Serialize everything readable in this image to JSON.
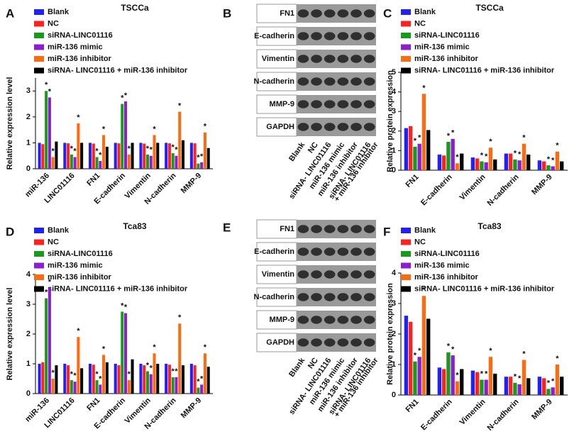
{
  "chart_data": [
    {
      "type": "bar",
      "panel": "A",
      "title": "TSCCa",
      "y_label": "Relative expression level",
      "categories": [
        "miR-136",
        "LINC01116",
        "FN1",
        "E-cadherin",
        "Vimentin",
        "N-cadherin",
        "MMP-9"
      ],
      "ylim": [
        0,
        3.5
      ],
      "yticks": [
        0,
        1,
        2,
        3
      ],
      "series": [
        {
          "name": "Blank",
          "color": "#2020ff",
          "values": [
            1,
            1,
            1,
            1,
            1,
            1,
            1
          ],
          "markers": [
            null,
            null,
            null,
            null,
            null,
            null,
            null
          ]
        },
        {
          "name": "NC",
          "color": "#ff2020",
          "values": [
            0.95,
            0.98,
            0.97,
            0.98,
            0.97,
            0.98,
            0.98
          ],
          "markers": [
            null,
            null,
            null,
            null,
            null,
            null,
            null
          ]
        },
        {
          "name": "siRNA-LINC01116",
          "color": "#1a9a1a",
          "values": [
            3.0,
            0.55,
            0.45,
            2.5,
            0.55,
            0.6,
            0.2
          ],
          "markers": [
            "*",
            "*",
            "*",
            "*",
            "*",
            "*",
            "*"
          ]
        },
        {
          "name": "miR-136 mimic",
          "color": "#8b1fd0",
          "values": [
            2.75,
            0.45,
            0.3,
            2.6,
            0.5,
            0.5,
            0.25
          ],
          "markers": [
            "*",
            "*",
            "*",
            "*",
            "*",
            "*",
            "*"
          ]
        },
        {
          "name": "miR-136 inhibitor",
          "color": "#ff6a10",
          "values": [
            0.45,
            1.75,
            1.3,
            0.55,
            1.3,
            2.2,
            1.4
          ],
          "markers": [
            "*",
            "*",
            "*",
            "*",
            "*",
            "*",
            "*"
          ]
        },
        {
          "name": "siRNA- LINC01116 + miR-136 inhibitor",
          "color": "#000000",
          "values": [
            1.05,
            1.0,
            0.85,
            1.0,
            1.0,
            1.1,
            0.8
          ],
          "markers": [
            null,
            null,
            null,
            null,
            null,
            null,
            null
          ]
        }
      ]
    },
    {
      "type": "bar",
      "panel": "C",
      "title": "TSCCa",
      "y_label": "Relative protein expression",
      "categories": [
        "FN1",
        "E-cadherin",
        "Vimentin",
        "N-cadherin",
        "MMP-9"
      ],
      "ylim": [
        0,
        5
      ],
      "yticks": [
        0,
        1,
        2,
        3,
        4,
        5
      ],
      "series": [
        {
          "name": "Blank",
          "color": "#2020ff",
          "values": [
            2.15,
            0.8,
            0.65,
            0.85,
            0.5
          ],
          "markers": [
            null,
            null,
            null,
            null,
            null
          ]
        },
        {
          "name": "NC",
          "color": "#ff2020",
          "values": [
            2.25,
            0.75,
            0.6,
            0.85,
            0.45
          ],
          "markers": [
            null,
            null,
            null,
            null,
            null
          ]
        },
        {
          "name": "siRNA-LINC01116",
          "color": "#1a9a1a",
          "values": [
            1.2,
            1.45,
            0.45,
            0.55,
            0.25
          ],
          "markers": [
            "*",
            "*",
            "*",
            "*",
            "*"
          ]
        },
        {
          "name": "miR-136 mimic",
          "color": "#8b1fd0",
          "values": [
            1.35,
            1.6,
            0.4,
            0.5,
            0.2
          ],
          "markers": [
            "*",
            "*",
            "*",
            "*",
            "*"
          ]
        },
        {
          "name": "miR-136 inhibitor",
          "color": "#ff6a10",
          "values": [
            3.9,
            0.35,
            1.15,
            1.35,
            0.95
          ],
          "markers": [
            "*",
            "*",
            "*",
            "*",
            "*"
          ]
        },
        {
          "name": "siRNA- LINC01116 + miR-136 inhibitor",
          "color": "#000000",
          "values": [
            2.05,
            0.85,
            0.55,
            0.8,
            0.45
          ],
          "markers": [
            null,
            null,
            null,
            null,
            null
          ]
        }
      ]
    },
    {
      "type": "bar",
      "panel": "D",
      "title": "Tca83",
      "y_label": "Relative expression level",
      "categories": [
        "miR-136",
        "LINC01116",
        "FN1",
        "E-cadherin",
        "Vimentin",
        "N-cadherin",
        "MMP-9"
      ],
      "ylim": [
        0,
        4
      ],
      "yticks": [
        0,
        1,
        2,
        3,
        4
      ],
      "series": [
        {
          "name": "Blank",
          "color": "#2020ff",
          "values": [
            1,
            1,
            1,
            1,
            1,
            1,
            1
          ],
          "markers": [
            null,
            null,
            null,
            null,
            null,
            null,
            null
          ]
        },
        {
          "name": "NC",
          "color": "#ff2020",
          "values": [
            1.05,
            0.95,
            0.97,
            0.95,
            0.95,
            0.97,
            0.95
          ],
          "markers": [
            null,
            null,
            null,
            null,
            null,
            null,
            null
          ]
        },
        {
          "name": "siRNA-LINC01116",
          "color": "#1a9a1a",
          "values": [
            3.2,
            0.45,
            0.45,
            2.75,
            0.75,
            0.55,
            0.2
          ],
          "markers": [
            "*",
            "*",
            "*",
            "*",
            "*",
            "*",
            "*"
          ]
        },
        {
          "name": "miR-136 mimic",
          "color": "#8b1fd0",
          "values": [
            3.55,
            0.4,
            0.3,
            2.7,
            0.65,
            0.55,
            0.3
          ],
          "markers": [
            "*",
            "*",
            "*",
            "*",
            "*",
            "*",
            "*"
          ]
        },
        {
          "name": "miR-136 inhibitor",
          "color": "#ff6a10",
          "values": [
            0.5,
            1.9,
            1.3,
            0.45,
            1.35,
            2.35,
            1.35
          ],
          "markers": [
            "*",
            "*",
            "*",
            "*",
            "*",
            "*",
            "*"
          ]
        },
        {
          "name": "siRNA- LINC01116 + miR-136 inhibitor",
          "color": "#000000",
          "values": [
            0.95,
            0.85,
            1.05,
            1.15,
            1.0,
            0.95,
            0.9
          ],
          "markers": [
            null,
            null,
            null,
            null,
            null,
            null,
            null
          ]
        }
      ]
    },
    {
      "type": "bar",
      "panel": "F",
      "title": "Tca83",
      "y_label": "Relative protein expression",
      "categories": [
        "FN1",
        "E-cadherin",
        "Vimentin",
        "N-cadherin",
        "MMP-9"
      ],
      "ylim": [
        0,
        4
      ],
      "yticks": [
        0,
        1,
        2,
        3,
        4
      ],
      "series": [
        {
          "name": "Blank",
          "color": "#2020ff",
          "values": [
            2.6,
            0.9,
            0.8,
            0.6,
            0.6
          ],
          "markers": [
            null,
            null,
            null,
            null,
            null
          ]
        },
        {
          "name": "NC",
          "color": "#ff2020",
          "values": [
            2.4,
            0.85,
            0.75,
            0.6,
            0.55
          ],
          "markers": [
            null,
            null,
            null,
            null,
            null
          ]
        },
        {
          "name": "siRNA-LINC01116",
          "color": "#1a9a1a",
          "values": [
            1.1,
            1.4,
            0.5,
            0.4,
            0.2
          ],
          "markers": [
            "*",
            "*",
            "*",
            "*",
            "*"
          ]
        },
        {
          "name": "miR-136 mimic",
          "color": "#8b1fd0",
          "values": [
            1.25,
            1.3,
            0.5,
            0.35,
            0.25
          ],
          "markers": [
            "*",
            "*",
            "*",
            "*",
            "*"
          ]
        },
        {
          "name": "miR-136 inhibitor",
          "color": "#ff6a10",
          "values": [
            3.25,
            0.45,
            1.25,
            1.15,
            1.0
          ],
          "markers": [
            "*",
            "*",
            "*",
            "*",
            "*"
          ]
        },
        {
          "name": "siRNA- LINC01116 + miR-136 inhibitor",
          "color": "#000000",
          "values": [
            2.5,
            0.85,
            0.7,
            0.55,
            0.6
          ],
          "markers": [
            null,
            null,
            null,
            null,
            null
          ]
        }
      ]
    }
  ],
  "blots": [
    {
      "panel": "B",
      "proteins": [
        "FN1",
        "E-cadherin",
        "Vimentin",
        "N-cadherin",
        "MMP-9",
        "GAPDH"
      ],
      "lanes": [
        [
          "Blank"
        ],
        [
          "NC"
        ],
        [
          "siRNA- LINC01116"
        ],
        [
          "miR-136 mimic"
        ],
        [
          "miR-136 inhibitor"
        ],
        [
          "siRNA- LINC01116",
          "+ miR-136 inhibitor"
        ]
      ]
    },
    {
      "panel": "E",
      "proteins": [
        "FN1",
        "E-cadherin",
        "Vimentin",
        "N-cadherin",
        "MMP-9",
        "GAPDH"
      ],
      "lanes": [
        [
          "Blank"
        ],
        [
          "NC"
        ],
        [
          "siRNA- LINC01116"
        ],
        [
          "miR-136 mimic"
        ],
        [
          "miR-136 inhibitor"
        ],
        [
          "siRNA- LINC01116",
          "+ miR-136 inhibitor"
        ]
      ]
    }
  ]
}
